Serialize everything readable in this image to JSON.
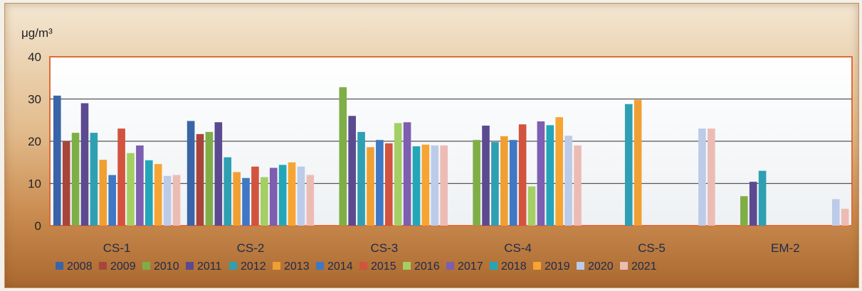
{
  "chart_data": {
    "type": "bar",
    "unit_label": "μg/m³",
    "categories": [
      "CS-1",
      "CS-2",
      "CS-3",
      "CS-4",
      "CS-5",
      "EM-2"
    ],
    "ylim": [
      0,
      40
    ],
    "yticks": [
      "0",
      "10",
      "20",
      "30",
      "40"
    ],
    "grid": true,
    "legend_position": "bottom",
    "series": [
      {
        "name": "2008",
        "color": "#3a64a8",
        "values": [
          30.8,
          24.8,
          null,
          null,
          null,
          null
        ]
      },
      {
        "name": "2009",
        "color": "#a8453a",
        "values": [
          20,
          21.7,
          null,
          null,
          null,
          null
        ]
      },
      {
        "name": "2010",
        "color": "#7fae47",
        "values": [
          22,
          22.2,
          32.8,
          20.3,
          null,
          7
        ]
      },
      {
        "name": "2011",
        "color": "#5c4a90",
        "values": [
          29,
          24.5,
          26,
          23.7,
          null,
          10.4
        ]
      },
      {
        "name": "2012",
        "color": "#2ea0b2",
        "values": [
          22,
          16.2,
          22.2,
          19.8,
          28.8,
          13
        ]
      },
      {
        "name": "2013",
        "color": "#f0a033",
        "values": [
          15.6,
          12.7,
          18.6,
          21.2,
          29.8,
          null
        ]
      },
      {
        "name": "2014",
        "color": "#3f78c4",
        "values": [
          12,
          11.3,
          20.3,
          20.3,
          null,
          null
        ]
      },
      {
        "name": "2015",
        "color": "#d2533e",
        "values": [
          23,
          14,
          19.5,
          24,
          null,
          null
        ]
      },
      {
        "name": "2016",
        "color": "#a4cf64",
        "values": [
          17.2,
          11.5,
          24.3,
          9.3,
          null,
          null
        ]
      },
      {
        "name": "2017",
        "color": "#7d5eb0",
        "values": [
          19,
          13.7,
          24.5,
          24.7,
          null,
          null
        ]
      },
      {
        "name": "2018",
        "color": "#23a6b8",
        "values": [
          15.5,
          14.4,
          18.8,
          23.8,
          null,
          null
        ]
      },
      {
        "name": "2019",
        "color": "#f6a532",
        "values": [
          14.6,
          15,
          19.2,
          25.7,
          null,
          null
        ]
      },
      {
        "name": "2020",
        "color": "#bccbe8",
        "values": [
          11.8,
          14,
          19,
          21.3,
          23,
          6.3
        ]
      },
      {
        "name": "2021",
        "color": "#ecbcb4",
        "values": [
          12,
          12,
          19,
          19,
          23,
          4
        ]
      }
    ]
  }
}
